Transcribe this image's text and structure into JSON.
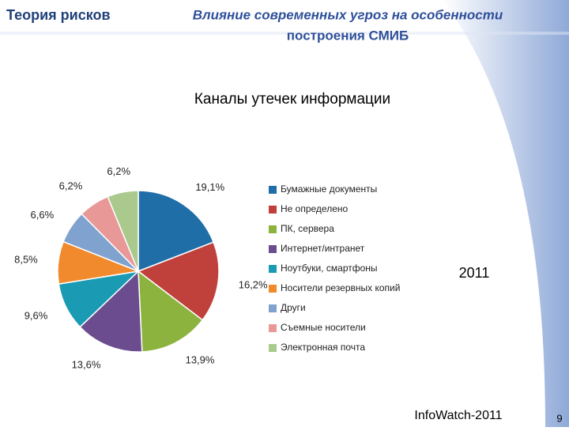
{
  "header": {
    "section": "Теория рисков",
    "title_lines": [
      "Влияние современных угроз на особенности",
      "построения СМИБ"
    ]
  },
  "chart_data": {
    "type": "pie",
    "title": "Каналы утечек информации",
    "annotation": "2011",
    "categories": [
      "Бумажные документы",
      "Не определено",
      "ПК, сервера",
      "Интернет/интранет",
      "Ноутбуки, смартфоны",
      "Носители резервных копий",
      "Други",
      "Съемные носители",
      "Электронная почта"
    ],
    "values": [
      19.1,
      16.2,
      13.9,
      13.6,
      9.6,
      8.5,
      6.6,
      6.2,
      6.2
    ],
    "value_labels": [
      "19,1%",
      "16,2%",
      "13,9%",
      "13,6%",
      "9,6%",
      "8,5%",
      "6,6%",
      "6,2%",
      "6,2%"
    ],
    "colors": [
      "#1f6ea8",
      "#c0403c",
      "#8db33f",
      "#6b4d8f",
      "#1a9bb3",
      "#f08a2c",
      "#7fa2cf",
      "#e89896",
      "#a9c98d"
    ]
  },
  "footer": {
    "source": "InfoWatch-2011",
    "page": "9"
  }
}
